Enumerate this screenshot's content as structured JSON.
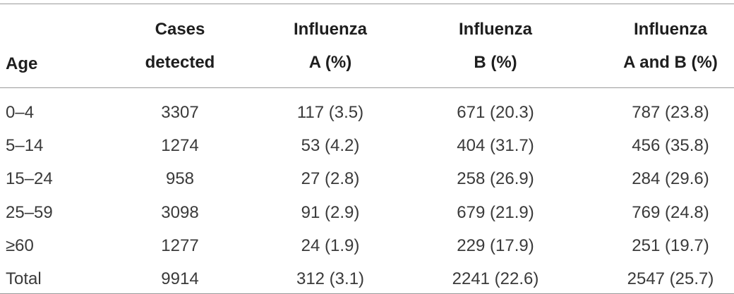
{
  "table": {
    "columns": [
      [
        "Age"
      ],
      [
        "Cases",
        "detected"
      ],
      [
        "Influenza",
        "A (%)"
      ],
      [
        "Influenza",
        "B (%)"
      ],
      [
        "Influenza",
        "A and B (%)"
      ]
    ],
    "rows": [
      [
        "0–4",
        "3307",
        "117 (3.5)",
        "671 (20.3)",
        "787 (23.8)"
      ],
      [
        "5–14",
        "1274",
        "53 (4.2)",
        "404 (31.7)",
        "456 (35.8)"
      ],
      [
        "15–24",
        "958",
        "27 (2.8)",
        "258 (26.9)",
        "284 (29.6)"
      ],
      [
        "25–59",
        "3098",
        "91 (2.9)",
        "679 (21.9)",
        "769 (24.8)"
      ],
      [
        "≥60",
        "1277",
        "24 (1.9)",
        "229 (17.9)",
        "251 (19.7)"
      ],
      [
        "Total",
        "9914",
        "312 (3.1)",
        "2241 (22.6)",
        "2547 (25.7)"
      ]
    ]
  }
}
